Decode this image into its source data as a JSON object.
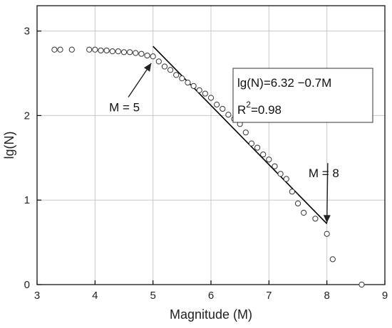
{
  "chart_data": {
    "type": "scatter",
    "title": "",
    "xlabel": "Magnitude (M)",
    "ylabel": "lg(N)",
    "xlim": [
      3,
      9
    ],
    "ylim": [
      0,
      3.3
    ],
    "x_ticks": [
      "3",
      "4",
      "5",
      "6",
      "7",
      "8",
      "9"
    ],
    "y_ticks": [
      "0",
      "1",
      "2",
      "3"
    ],
    "grid": true,
    "series": [
      {
        "marker": "open-circle",
        "x": [
          3.3,
          3.4,
          3.6,
          3.9,
          4.0,
          4.1,
          4.2,
          4.3,
          4.4,
          4.5,
          4.6,
          4.7,
          4.8,
          4.9,
          5.0,
          5.1,
          5.2,
          5.3,
          5.4,
          5.5,
          5.6,
          5.7,
          5.8,
          5.9,
          6.0,
          6.1,
          6.2,
          6.3,
          6.4,
          6.5,
          6.6,
          6.7,
          6.8,
          6.9,
          7.0,
          7.1,
          7.2,
          7.3,
          7.4,
          7.5,
          7.6,
          7.8,
          8.0,
          8.1,
          8.6
        ],
        "y": [
          2.78,
          2.78,
          2.78,
          2.78,
          2.78,
          2.77,
          2.77,
          2.76,
          2.76,
          2.75,
          2.75,
          2.74,
          2.73,
          2.71,
          2.7,
          2.64,
          2.58,
          2.54,
          2.48,
          2.44,
          2.39,
          2.35,
          2.3,
          2.26,
          2.21,
          2.13,
          2.08,
          2.01,
          1.96,
          1.9,
          1.8,
          1.67,
          1.62,
          1.54,
          1.48,
          1.4,
          1.31,
          1.25,
          1.1,
          0.96,
          0.85,
          0.78,
          0.6,
          0.3,
          0.0
        ]
      }
    ],
    "fit_line": {
      "x": [
        5,
        8
      ],
      "y": [
        2.82,
        0.72
      ]
    },
    "annotations": [
      {
        "text": "M = 5",
        "x": 4.55,
        "y": 2.1,
        "arrow_to": [
          4.97,
          2.62
        ]
      },
      {
        "text": "M = 8",
        "x": 7.99,
        "y": 1.32,
        "arrow_to": [
          8.0,
          0.73
        ]
      }
    ],
    "equation": {
      "line1": "lg(N)=6.32 −0.7M",
      "r2_prefix": "R",
      "r2_sup": "2",
      "r2_suffix": "=0.98"
    }
  }
}
